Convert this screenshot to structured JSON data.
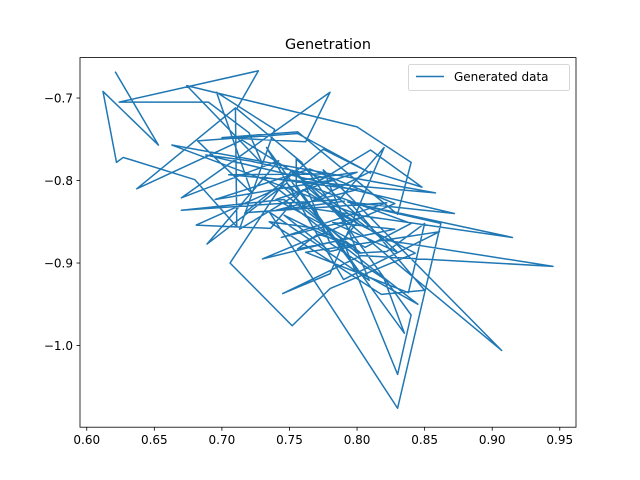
{
  "chart_data": {
    "type": "line",
    "title": "Genetration",
    "xlabel": "",
    "ylabel": "",
    "xlim": [
      0.595,
      0.962
    ],
    "ylim": [
      -1.099,
      -0.651
    ],
    "xticks": [
      0.6,
      0.65,
      0.7,
      0.75,
      0.8,
      0.85,
      0.9,
      0.95
    ],
    "xtick_labels": [
      "0.60",
      "0.65",
      "0.70",
      "0.75",
      "0.80",
      "0.85",
      "0.90",
      "0.95"
    ],
    "yticks": [
      -0.7,
      -0.8,
      -0.9,
      -1.0
    ],
    "ytick_labels": [
      "−0.7",
      "−0.8",
      "−0.9",
      "−1.0"
    ],
    "grid": false,
    "legend": {
      "position": "top-right",
      "entries": [
        "Generated data"
      ]
    },
    "series": [
      {
        "name": "Generated data",
        "color": "#1f77b4",
        "x": [
          0.621,
          0.653,
          0.612,
          0.622,
          0.627,
          0.68,
          0.711,
          0.71,
          0.637,
          0.715,
          0.757,
          0.79,
          0.759,
          0.711,
          0.727,
          0.624,
          0.69,
          0.72,
          0.73,
          0.674,
          0.8,
          0.84,
          0.83,
          0.756,
          0.7,
          0.762,
          0.78,
          0.67,
          0.742,
          0.689,
          0.748,
          0.756,
          0.78,
          0.705,
          0.858,
          0.663,
          0.805,
          0.744,
          0.822,
          0.717,
          0.775,
          0.81,
          0.756,
          0.682,
          0.722,
          0.696,
          0.739,
          0.713,
          0.81,
          0.848,
          0.81,
          0.758,
          0.915,
          0.793,
          0.872,
          0.688,
          0.72,
          0.783,
          0.695,
          0.765,
          0.828,
          0.73,
          0.79,
          0.8,
          0.76,
          0.736,
          0.681,
          0.745,
          0.8,
          0.822,
          0.85,
          0.838,
          0.762,
          0.861,
          0.79,
          0.733,
          0.8,
          0.845,
          0.746,
          0.67,
          0.787,
          0.82,
          0.78,
          0.745,
          0.803,
          0.945,
          0.82,
          0.751,
          0.706,
          0.752,
          0.78,
          0.843,
          0.785,
          0.84,
          0.83,
          0.79,
          0.77,
          0.735,
          0.818,
          0.85,
          0.795,
          0.862,
          0.83,
          0.735,
          0.809,
          0.775,
          0.907,
          0.818,
          0.76,
          0.84,
          0.806,
          0.74,
          0.8,
          0.76,
          0.78,
          0.82,
          0.835,
          0.755,
          0.755,
          0.83,
          0.782,
          0.828,
          0.756,
          0.771,
          0.798,
          0.78,
          0.746,
          0.803,
          0.73,
          0.8,
          0.74,
          0.791
        ],
        "y": [
          -0.668,
          -0.757,
          -0.692,
          -0.778,
          -0.772,
          -0.799,
          -0.856,
          -0.712,
          -0.81,
          -0.751,
          -0.794,
          -0.849,
          -0.778,
          -0.713,
          -0.667,
          -0.705,
          -0.705,
          -0.742,
          -0.78,
          -0.685,
          -0.735,
          -0.778,
          -0.841,
          -0.741,
          -0.748,
          -0.753,
          -0.693,
          -0.821,
          -0.776,
          -0.877,
          -0.803,
          -0.816,
          -0.792,
          -0.793,
          -0.815,
          -0.757,
          -0.844,
          -0.869,
          -0.827,
          -0.839,
          -0.762,
          -0.791,
          -0.743,
          -0.752,
          -0.815,
          -0.693,
          -0.738,
          -0.859,
          -0.763,
          -0.808,
          -0.789,
          -0.832,
          -0.869,
          -0.826,
          -0.84,
          -0.769,
          -0.776,
          -0.799,
          -0.823,
          -0.786,
          -0.828,
          -0.895,
          -0.871,
          -0.851,
          -0.811,
          -0.858,
          -0.854,
          -0.807,
          -0.888,
          -0.886,
          -0.852,
          -0.936,
          -0.887,
          -0.862,
          -0.92,
          -0.76,
          -0.909,
          -0.95,
          -0.823,
          -0.836,
          -0.823,
          -0.76,
          -0.913,
          -0.937,
          -0.891,
          -0.904,
          -0.872,
          -0.789,
          -0.9,
          -0.976,
          -0.931,
          -0.888,
          -0.839,
          -0.963,
          -1.035,
          -0.875,
          -0.858,
          -0.85,
          -0.938,
          -0.933,
          -0.827,
          -0.852,
          -1.076,
          -0.838,
          -0.921,
          -0.787,
          -1.006,
          -0.885,
          -0.804,
          -0.852,
          -0.881,
          -0.823,
          -0.79,
          -0.799,
          -0.876,
          -0.919,
          -0.985,
          -0.806,
          -0.774,
          -0.887,
          -0.851,
          -0.859,
          -0.883,
          -0.865,
          -0.879,
          -0.886,
          -0.842,
          -0.888,
          -0.796,
          -0.811,
          -0.836,
          -0.825
        ]
      }
    ]
  }
}
